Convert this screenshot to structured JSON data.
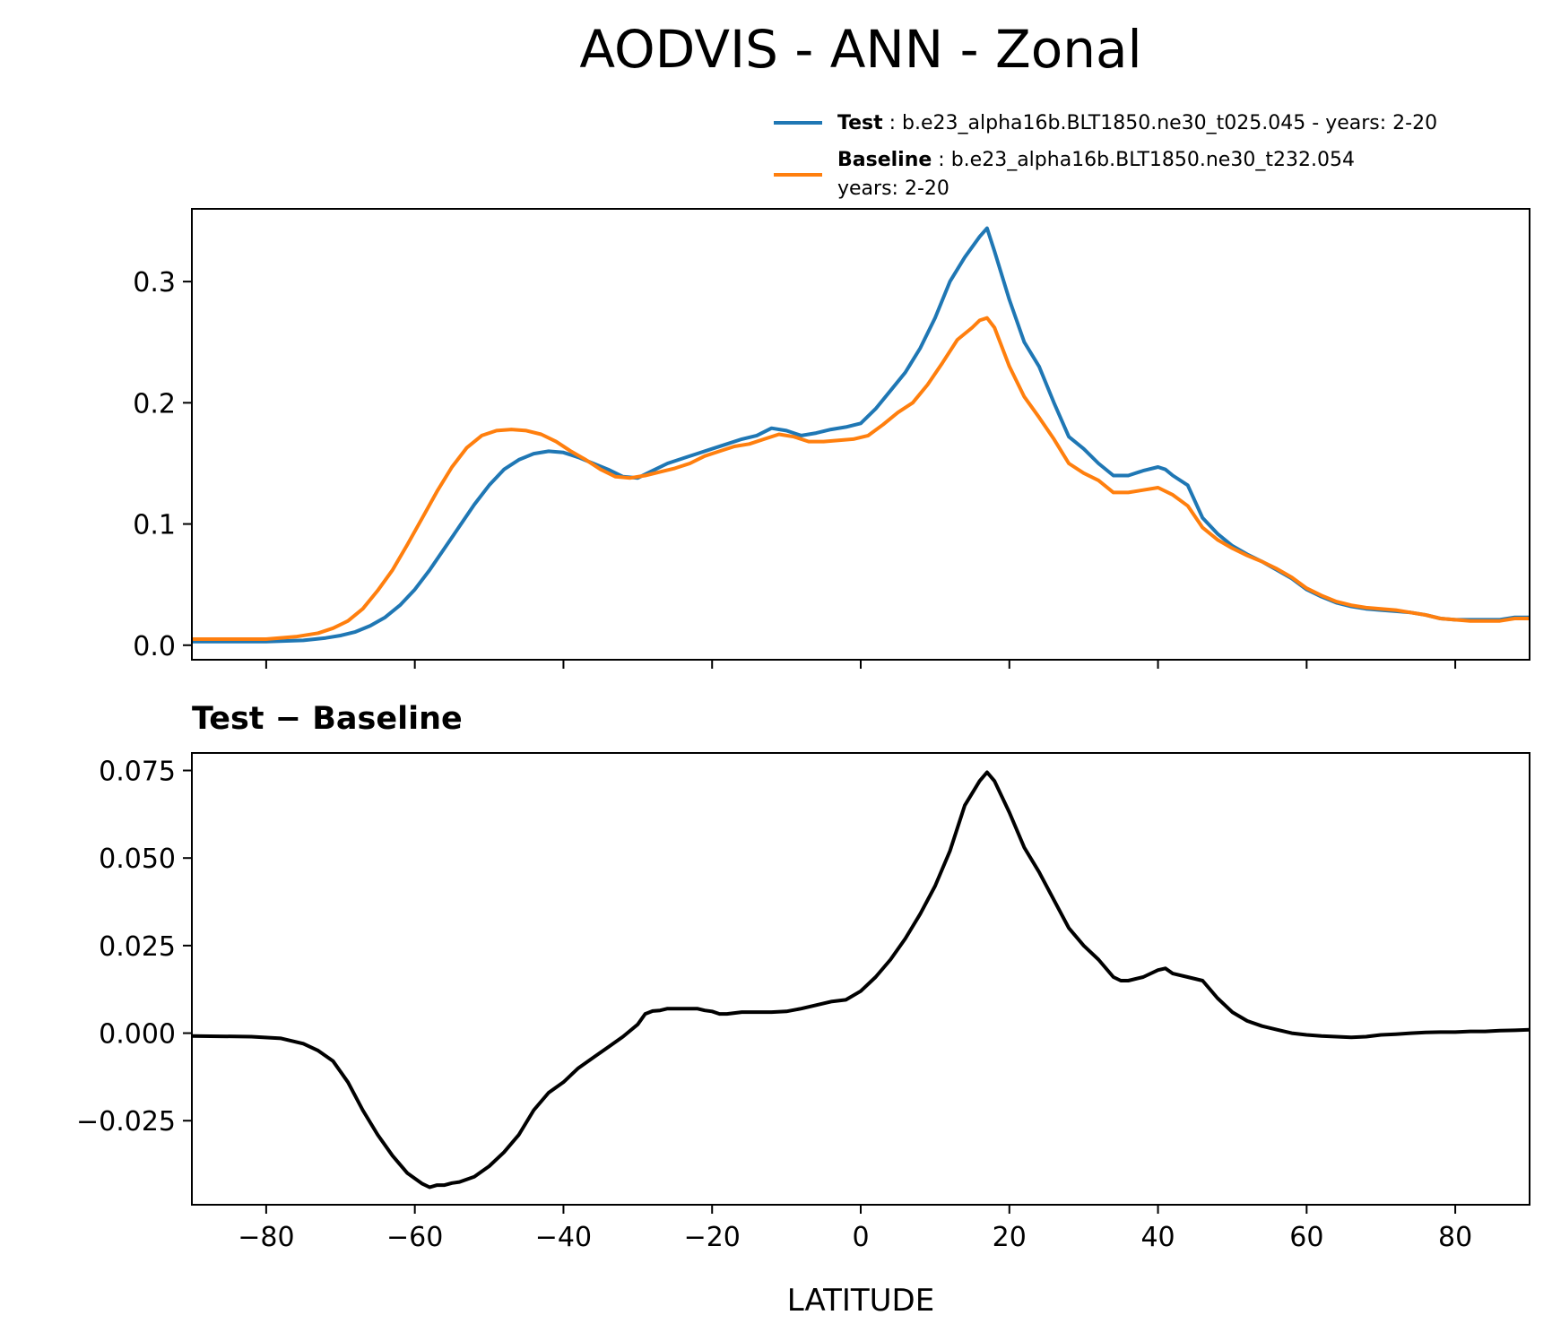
{
  "chart_data": {
    "title": "AODVIS - ANN - Zonal",
    "type": "line",
    "xlabel": "LATITUDE",
    "xlim": [
      -90,
      90
    ],
    "xticks": [
      -80,
      -60,
      -40,
      -20,
      0,
      20,
      40,
      60,
      80
    ],
    "xtick_labels": [
      "−80",
      "−60",
      "−40",
      "−20",
      "0",
      "20",
      "40",
      "60",
      "80"
    ],
    "legend": {
      "test_label": "Test",
      "test_text": ": b.e23_alpha16b.BLT1850.ne30_t025.045 - years: 2-20",
      "baseline_label": "Baseline",
      "baseline_text": ": b.e23_alpha16b.BLT1850.ne30_t232.054",
      "baseline_text2": "years: 2-20"
    },
    "panels": [
      {
        "name": "zonal-mean",
        "ylim": [
          -0.012,
          0.36
        ],
        "yticks": [
          0.0,
          0.1,
          0.2,
          0.3
        ],
        "ytick_labels": [
          "0.0",
          "0.1",
          "0.2",
          "0.3"
        ],
        "series": [
          {
            "name": "Test",
            "color": "#1f77b4",
            "x": [
              -90,
              -80,
              -75,
              -72,
              -70,
              -68,
              -66,
              -64,
              -62,
              -60,
              -58,
              -56,
              -54,
              -52,
              -50,
              -48,
              -46,
              -44,
              -42,
              -40,
              -38,
              -36,
              -34,
              -32,
              -30,
              -28,
              -26,
              -24,
              -22,
              -20,
              -18,
              -16,
              -14,
              -12,
              -10,
              -8,
              -6,
              -4,
              -2,
              0,
              2,
              4,
              6,
              8,
              10,
              12,
              14,
              16,
              17,
              18,
              20,
              22,
              24,
              26,
              28,
              30,
              32,
              34,
              36,
              38,
              40,
              41,
              42,
              44,
              46,
              48,
              50,
              52,
              54,
              56,
              58,
              60,
              62,
              64,
              66,
              68,
              70,
              72,
              74,
              76,
              78,
              80,
              82,
              84,
              86,
              88,
              90
            ],
            "y": [
              0.003,
              0.003,
              0.004,
              0.006,
              0.008,
              0.011,
              0.016,
              0.023,
              0.033,
              0.046,
              0.062,
              0.08,
              0.098,
              0.116,
              0.132,
              0.145,
              0.153,
              0.158,
              0.16,
              0.159,
              0.155,
              0.15,
              0.145,
              0.139,
              0.138,
              0.144,
              0.15,
              0.154,
              0.158,
              0.162,
              0.166,
              0.17,
              0.173,
              0.179,
              0.177,
              0.173,
              0.175,
              0.178,
              0.18,
              0.183,
              0.195,
              0.21,
              0.225,
              0.245,
              0.27,
              0.3,
              0.32,
              0.337,
              0.344,
              0.325,
              0.285,
              0.25,
              0.23,
              0.2,
              0.172,
              0.162,
              0.15,
              0.14,
              0.14,
              0.144,
              0.147,
              0.145,
              0.14,
              0.132,
              0.105,
              0.092,
              0.082,
              0.075,
              0.069,
              0.062,
              0.055,
              0.046,
              0.04,
              0.035,
              0.032,
              0.03,
              0.029,
              0.028,
              0.027,
              0.025,
              0.022,
              0.021,
              0.021,
              0.021,
              0.021,
              0.023,
              0.023
            ]
          },
          {
            "name": "Baseline",
            "color": "#ff7f0e",
            "x": [
              -90,
              -80,
              -76,
              -73,
              -71,
              -69,
              -67,
              -65,
              -63,
              -61,
              -59,
              -57,
              -55,
              -53,
              -51,
              -49,
              -47,
              -45,
              -43,
              -41,
              -39,
              -37,
              -35,
              -33,
              -31,
              -29,
              -27,
              -25,
              -23,
              -21,
              -19,
              -17,
              -15,
              -13,
              -11,
              -9,
              -7,
              -5,
              -3,
              -1,
              1,
              3,
              5,
              7,
              9,
              11,
              13,
              15,
              16,
              17,
              18,
              20,
              22,
              24,
              26,
              28,
              30,
              32,
              34,
              36,
              38,
              40,
              42,
              44,
              46,
              48,
              50,
              52,
              54,
              56,
              58,
              60,
              62,
              64,
              66,
              68,
              70,
              72,
              74,
              76,
              78,
              80,
              82,
              84,
              86,
              88,
              90
            ],
            "y": [
              0.005,
              0.005,
              0.007,
              0.01,
              0.014,
              0.02,
              0.03,
              0.045,
              0.062,
              0.083,
              0.105,
              0.127,
              0.147,
              0.163,
              0.173,
              0.177,
              0.178,
              0.177,
              0.174,
              0.168,
              0.16,
              0.153,
              0.145,
              0.139,
              0.138,
              0.14,
              0.143,
              0.146,
              0.15,
              0.156,
              0.16,
              0.164,
              0.166,
              0.17,
              0.174,
              0.172,
              0.168,
              0.168,
              0.169,
              0.17,
              0.173,
              0.182,
              0.192,
              0.2,
              0.215,
              0.233,
              0.252,
              0.262,
              0.268,
              0.27,
              0.262,
              0.23,
              0.205,
              0.188,
              0.17,
              0.15,
              0.142,
              0.136,
              0.126,
              0.126,
              0.128,
              0.13,
              0.124,
              0.115,
              0.097,
              0.087,
              0.08,
              0.074,
              0.069,
              0.063,
              0.056,
              0.047,
              0.041,
              0.036,
              0.033,
              0.031,
              0.03,
              0.029,
              0.027,
              0.025,
              0.022,
              0.021,
              0.02,
              0.02,
              0.02,
              0.022,
              0.022
            ]
          }
        ]
      },
      {
        "name": "difference",
        "subtitle_left": "Test",
        "subtitle_mid": "−",
        "subtitle_right": "Baseline",
        "ylim": [
          -0.049,
          0.08
        ],
        "yticks": [
          -0.025,
          0.0,
          0.025,
          0.05,
          0.075
        ],
        "ytick_labels": [
          "−0.025",
          "0.000",
          "0.025",
          "0.050",
          "0.075"
        ],
        "series": [
          {
            "name": "Test − Baseline",
            "color": "#000000",
            "x": [
              -90,
              -82,
              -78,
              -75,
              -73,
              -71,
              -69,
              -67,
              -65,
              -63,
              -61,
              -59,
              -58,
              -57,
              -56,
              -55,
              -54,
              -52,
              -50,
              -48,
              -46,
              -44,
              -42,
              -40,
              -38,
              -36,
              -34,
              -32,
              -30,
              -29,
              -28,
              -27,
              -26,
              -24,
              -22,
              -21,
              -20,
              -19,
              -18,
              -16,
              -14,
              -12,
              -10,
              -8,
              -6,
              -4,
              -2,
              0,
              2,
              4,
              6,
              8,
              10,
              12,
              14,
              16,
              17,
              18,
              20,
              22,
              24,
              26,
              28,
              30,
              32,
              34,
              35,
              36,
              38,
              40,
              41,
              42,
              44,
              46,
              48,
              50,
              52,
              54,
              56,
              58,
              60,
              62,
              64,
              66,
              68,
              70,
              72,
              74,
              76,
              78,
              80,
              82,
              84,
              86,
              88,
              90
            ],
            "y": [
              -0.0008,
              -0.001,
              -0.0015,
              -0.003,
              -0.005,
              -0.008,
              -0.014,
              -0.022,
              -0.029,
              -0.035,
              -0.04,
              -0.043,
              -0.044,
              -0.0434,
              -0.0434,
              -0.0428,
              -0.0425,
              -0.041,
              -0.038,
              -0.034,
              -0.029,
              -0.022,
              -0.017,
              -0.014,
              -0.01,
              -0.007,
              -0.004,
              -0.001,
              0.0025,
              0.0055,
              0.0063,
              0.0065,
              0.007,
              0.007,
              0.007,
              0.0065,
              0.0062,
              0.0055,
              0.0055,
              0.006,
              0.006,
              0.006,
              0.0062,
              0.007,
              0.008,
              0.009,
              0.0095,
              0.012,
              0.016,
              0.021,
              0.027,
              0.034,
              0.042,
              0.052,
              0.065,
              0.072,
              0.0745,
              0.072,
              0.063,
              0.053,
              0.046,
              0.038,
              0.03,
              0.025,
              0.021,
              0.016,
              0.015,
              0.015,
              0.016,
              0.018,
              0.0185,
              0.017,
              0.016,
              0.015,
              0.01,
              0.006,
              0.0035,
              0.002,
              0.001,
              0,
              -0.0005,
              -0.0008,
              -0.001,
              -0.0012,
              -0.001,
              -0.0005,
              -0.0003,
              0,
              0.0002,
              0.0003,
              0.0003,
              0.0005,
              0.0005,
              0.0007,
              0.0008,
              0.001
            ]
          }
        ]
      }
    ]
  }
}
